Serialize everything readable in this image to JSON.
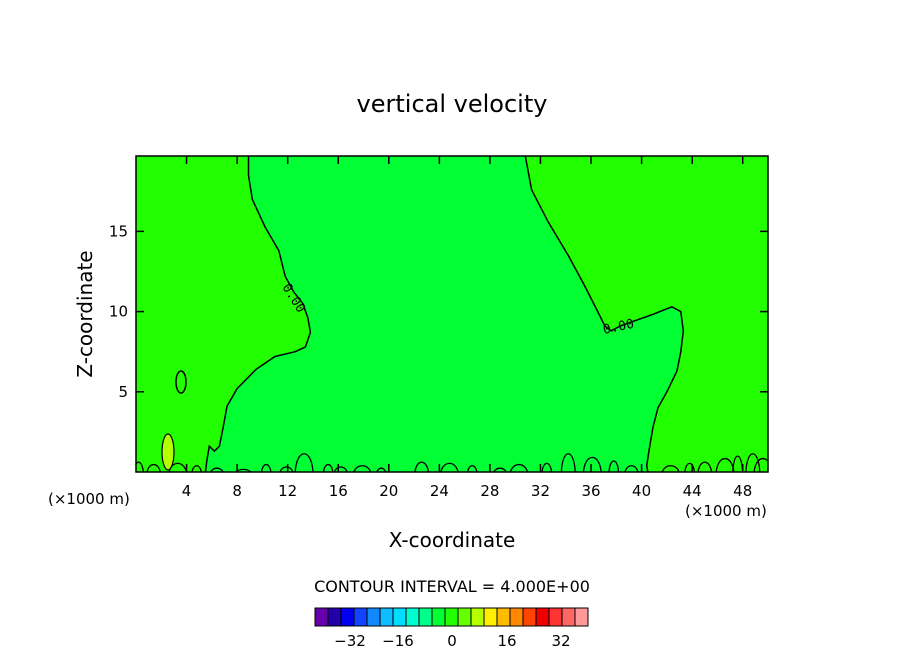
{
  "chart_data": {
    "type": "contour",
    "title": "vertical velocity",
    "xlabel": "X-coordinate",
    "ylabel": "Z-coordinate",
    "x_unit": "(×1000 m)",
    "x_ticks": [
      4,
      8,
      12,
      16,
      20,
      24,
      28,
      32,
      36,
      40,
      44,
      48
    ],
    "y_ticks": [
      5,
      10,
      15
    ],
    "xlim": [
      0,
      50
    ],
    "ylim": [
      0,
      19.7
    ],
    "contour_interval_text": "CONTOUR INTERVAL = 4.000E+00",
    "contour_label": "0.00",
    "fill_colors": {
      "positive_region": "#22ff00",
      "negative_region": "#00ff33",
      "weak_updraft": "#b4ff00",
      "contour_line": "#000000"
    },
    "colorbar": {
      "colors": [
        "#6600aa",
        "#2200aa",
        "#0000ee",
        "#1144ff",
        "#1188ff",
        "#11bbff",
        "#00ddff",
        "#00ffcc",
        "#00ff88",
        "#00ff33",
        "#22ff00",
        "#66ff00",
        "#b4ff00",
        "#ffee00",
        "#ffbb00",
        "#ff8800",
        "#ff4400",
        "#ee0000",
        "#ff3333",
        "#ff6666",
        "#ff9999"
      ],
      "tick_labels": [
        "−32",
        "−16",
        "0",
        "16",
        "32"
      ]
    },
    "zero_contour_main": [
      [
        8.9,
        19.7
      ],
      [
        8.9,
        18.5
      ],
      [
        9.2,
        17
      ],
      [
        10.2,
        15.3
      ],
      [
        11.3,
        13.8
      ],
      [
        11.8,
        12.2
      ],
      [
        12.5,
        11.2
      ],
      [
        13.2,
        10.5
      ],
      [
        13.6,
        9.6
      ],
      [
        13.8,
        8.7
      ],
      [
        13.4,
        7.8
      ],
      [
        12.6,
        7.5
      ],
      [
        11,
        7.2
      ],
      [
        9.5,
        6.4
      ],
      [
        8,
        5.2
      ],
      [
        7.2,
        4.1
      ],
      [
        6.9,
        2.8
      ],
      [
        6.6,
        1.6
      ],
      [
        6.2,
        1.3
      ],
      [
        5.8,
        1.6
      ],
      [
        5.6,
        0.7
      ],
      [
        5.5,
        0
      ]
    ],
    "zero_contour_right": [
      [
        30.8,
        19.7
      ],
      [
        31.3,
        17.6
      ],
      [
        32.6,
        15.6
      ],
      [
        34.2,
        13.5
      ],
      [
        35.5,
        11.6
      ],
      [
        36.4,
        10.2
      ],
      [
        37.1,
        9.1
      ],
      [
        37.6,
        8.8
      ],
      [
        38.3,
        9.1
      ],
      [
        39,
        9.3
      ],
      [
        40.8,
        9.8
      ],
      [
        42.4,
        10.3
      ],
      [
        43.1,
        10
      ],
      [
        43.3,
        8.8
      ],
      [
        43.1,
        7.5
      ],
      [
        42.8,
        6.3
      ],
      [
        42,
        5
      ],
      [
        41.3,
        4
      ],
      [
        40.9,
        2.8
      ],
      [
        40.6,
        1.4
      ],
      [
        40.4,
        0.4
      ],
      [
        40.5,
        0
      ]
    ],
    "near_surface_cells": [
      [
        0.2,
        0.9
      ],
      [
        1.4,
        0.7
      ],
      [
        3.3,
        0.8
      ],
      [
        4.8,
        0.6
      ],
      [
        6.4,
        0.4
      ],
      [
        8.5,
        0.3
      ],
      [
        10.3,
        0.7
      ],
      [
        11.9,
        0.5
      ],
      [
        13.3,
        1.6
      ],
      [
        15.2,
        0.7
      ],
      [
        16.2,
        0.5
      ],
      [
        17.9,
        0.6
      ],
      [
        19.4,
        0.4
      ],
      [
        22.6,
        0.9
      ],
      [
        24.8,
        0.8
      ],
      [
        26.6,
        0.6
      ],
      [
        28.8,
        0.4
      ],
      [
        30.3,
        0.7
      ],
      [
        32.5,
        0.8
      ],
      [
        34.2,
        1.6
      ],
      [
        36.1,
        1.3
      ],
      [
        37.8,
        1
      ],
      [
        39.2,
        0.6
      ],
      [
        42.3,
        0.6
      ],
      [
        43.8,
        0.8
      ],
      [
        45,
        0.9
      ],
      [
        46.6,
        1.2
      ],
      [
        47.6,
        1.4
      ],
      [
        48.8,
        1.6
      ],
      [
        49.6,
        1.2
      ]
    ],
    "closed_contours": [
      [
        3.5,
        5.8
      ],
      [
        3.8,
        6.1
      ],
      [
        3.3,
        5.5
      ]
    ]
  }
}
